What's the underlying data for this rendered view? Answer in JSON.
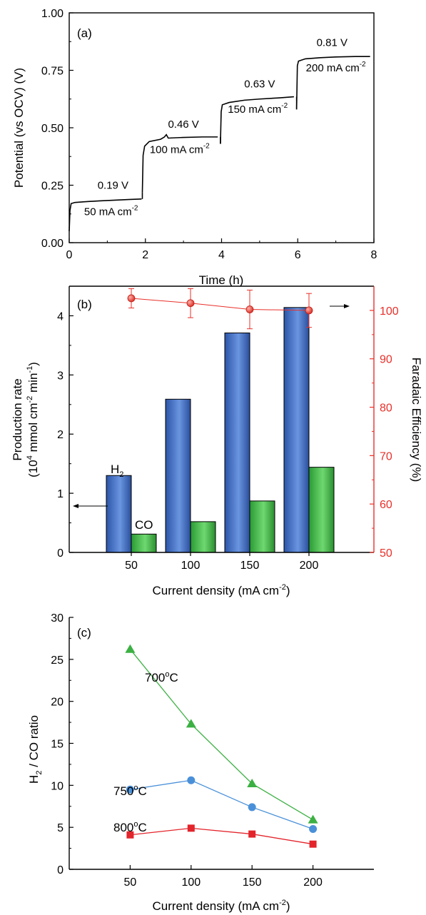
{
  "chart_data": [
    {
      "type": "line",
      "panel_label": "(a)",
      "xlabel": "Time (h)",
      "ylabel": "Potential (vs OCV) (V)",
      "xlim": [
        0,
        8
      ],
      "ylim": [
        0,
        1
      ],
      "xticks": [
        "0",
        "2",
        "4",
        "6",
        "8"
      ],
      "yticks": [
        "0.00",
        "0.25",
        "0.50",
        "0.75",
        "1.00"
      ],
      "series": [
        {
          "color": "#000000",
          "segments": [
            {
              "x": [
                0.0,
                0.02,
                0.05,
                0.15,
                0.4,
                0.8,
                1.2,
                1.6,
                1.9
              ],
              "y": [
                0.05,
                0.14,
                0.17,
                0.175,
                0.178,
                0.182,
                0.185,
                0.188,
                0.19
              ]
            },
            {
              "x": [
                1.92,
                1.94,
                1.98,
                2.1,
                2.4,
                2.5,
                2.55,
                2.6,
                3.0,
                3.5,
                3.9
              ],
              "y": [
                0.22,
                0.38,
                0.42,
                0.44,
                0.45,
                0.46,
                0.47,
                0.455,
                0.458,
                0.46,
                0.46
              ]
            },
            {
              "x": [
                3.97,
                3.99,
                4.02,
                4.2,
                4.6,
                5.0,
                5.5,
                5.9
              ],
              "y": [
                0.43,
                0.57,
                0.6,
                0.61,
                0.62,
                0.625,
                0.63,
                0.635
              ]
            },
            {
              "x": [
                5.97,
                5.99,
                6.02,
                6.2,
                6.6,
                7.0,
                7.5,
                7.9
              ],
              "y": [
                0.58,
                0.77,
                0.79,
                0.8,
                0.805,
                0.808,
                0.81,
                0.81
              ]
            }
          ]
        }
      ],
      "annotations": [
        {
          "text": "0.19 V",
          "x": 1.15,
          "y": 0.235
        },
        {
          "text": "50 mA cm",
          "sup": "-2",
          "x": 1.1,
          "y": 0.12
        },
        {
          "text": "0.46 V",
          "x": 3.0,
          "y": 0.5
        },
        {
          "text": "100 mA cm",
          "sup": "-2",
          "x": 2.9,
          "y": 0.39
        },
        {
          "text": "0.63 V",
          "x": 5.0,
          "y": 0.675
        },
        {
          "text": "150 mA cm",
          "sup": "-2",
          "x": 4.95,
          "y": 0.565
        },
        {
          "text": "0.81 V",
          "x": 6.9,
          "y": 0.855
        },
        {
          "text": "200 mA cm",
          "sup": "-2",
          "x": 7.0,
          "y": 0.745
        }
      ]
    },
    {
      "type": "bar",
      "panel_label": "(b)",
      "xlabel": "Current density (mA cm",
      "xlabel_sup": "-2",
      "xlabel_end": ")",
      "ylabel_line1": "Production rate",
      "ylabel_line2": "(10",
      "ylabel_line2_sup": "4",
      "ylabel_line2_mid": " mmol cm",
      "ylabel_line2_sup2": "-2",
      "ylabel_line2_mid2": " min",
      "ylabel_line2_sup3": "-1",
      "ylabel_line2_end": ")",
      "ylabel_right": "Faradaic Efficiency (%)",
      "categories": [
        "50",
        "100",
        "150",
        "200"
      ],
      "ylim": [
        0,
        4.5
      ],
      "yticks": [
        "0",
        "1",
        "2",
        "3",
        "4"
      ],
      "ylim_right": [
        50,
        105
      ],
      "yticks_right": [
        "50",
        "60",
        "70",
        "80",
        "90",
        "100"
      ],
      "series": [
        {
          "name": "H",
          "name_sub": "2",
          "values": [
            1.3,
            2.59,
            3.71,
            4.14
          ],
          "color": "#3f6cc6"
        },
        {
          "name": "CO",
          "values": [
            0.31,
            0.52,
            0.87,
            1.44
          ],
          "color": "#3dbb45"
        }
      ],
      "faradaic_efficiency": {
        "values": [
          102.5,
          101.5,
          100.2,
          100.0
        ],
        "errors": [
          2.0,
          3.0,
          4.0,
          3.5
        ],
        "color": "#e8302a"
      }
    },
    {
      "type": "line",
      "panel_label": "(c)",
      "xlabel": "Current density (mA cm",
      "xlabel_sup": "-2",
      "xlabel_end": ")",
      "ylabel": "H",
      "ylabel_sub": "2",
      "ylabel_end": " / CO ratio",
      "x": [
        50,
        100,
        150,
        200
      ],
      "xlim": [
        0,
        250
      ],
      "ylim": [
        0,
        30
      ],
      "xticks": [
        "50",
        "100",
        "150",
        "200"
      ],
      "yticks": [
        "0",
        "5",
        "10",
        "15",
        "20",
        "25",
        "30"
      ],
      "series": [
        {
          "name": "700",
          "name_sup": "o",
          "name_end": "C",
          "values": [
            26.2,
            17.3,
            10.2,
            5.9
          ],
          "color": "#3cb043",
          "marker": "triangle"
        },
        {
          "name": "750",
          "name_sup": "o",
          "name_end": "C",
          "values": [
            9.5,
            10.6,
            7.4,
            4.8
          ],
          "color": "#4a90d9",
          "marker": "circle"
        },
        {
          "name": "800",
          "name_sup": "o",
          "name_end": "C",
          "values": [
            4.1,
            4.9,
            4.2,
            3.0
          ],
          "color": "#e3242b",
          "marker": "square"
        }
      ]
    }
  ]
}
